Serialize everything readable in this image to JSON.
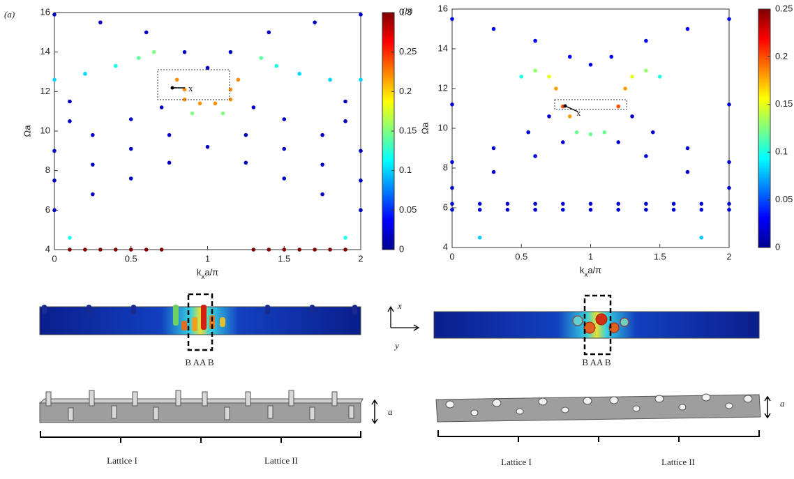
{
  "chart_data": [
    {
      "type": "scatter",
      "panel_label": "(a)",
      "ylabel": "Ωa",
      "xlabel": [
        "k",
        "x",
        "a/π"
      ],
      "annotation": "x",
      "xlim": [
        0,
        2
      ],
      "xticks": [
        0,
        0.5,
        1,
        1.5,
        2
      ],
      "ylim": [
        4,
        16
      ],
      "yticks": [
        4,
        6,
        8,
        10,
        12,
        14,
        16
      ],
      "colormap": "jet",
      "clim": [
        0,
        0.3
      ],
      "cticks": [
        0,
        0.05,
        0.1,
        0.15,
        0.2,
        0.25,
        0.3
      ],
      "x": [
        0,
        0.2,
        0.4,
        0.55,
        0.65,
        1.35,
        1.45,
        1.6,
        1.8,
        2,
        0.8,
        0.85,
        1.15,
        1.2,
        0.85,
        0.95,
        1.05,
        1.15,
        0.1,
        0.2,
        0.3,
        0.4,
        0.5,
        0.6,
        0.7,
        1.3,
        1.4,
        1.5,
        1.6,
        1.7,
        1.8,
        1.9,
        0,
        0.25,
        0.5,
        0.7,
        1.3,
        1.5,
        1.75,
        2,
        0,
        0.25,
        0.5,
        0.75,
        1.25,
        1.5,
        1.75,
        2,
        0,
        0.25,
        0.5,
        0.75,
        1,
        1.25,
        1.5,
        1.75,
        2,
        0,
        0.3,
        0.6,
        0.85,
        1,
        1.15,
        1.4,
        1.7,
        2,
        0.1,
        0.1,
        1.9,
        1.9,
        0.1,
        1.9,
        0.9,
        1.1
      ],
      "values": [
        12.6,
        12.9,
        13.3,
        13.7,
        14,
        13.7,
        13.3,
        12.9,
        12.6,
        12.6,
        12.6,
        12.1,
        12.1,
        12.6,
        11.6,
        11.4,
        11.4,
        11.6,
        4,
        4,
        4,
        4,
        4,
        4,
        4,
        4,
        4,
        4,
        4,
        4,
        4,
        4,
        9,
        9.8,
        10.6,
        11.2,
        11.2,
        10.6,
        9.8,
        9,
        7.5,
        8.3,
        9.1,
        9.8,
        9.8,
        9.1,
        8.3,
        7.5,
        6,
        6.8,
        7.6,
        8.4,
        9.2,
        8.4,
        7.6,
        6.8,
        6,
        15.9,
        15.5,
        15,
        14,
        13.2,
        14,
        15,
        15.5,
        15.9,
        11.5,
        10.5,
        11.5,
        10.5,
        4.6,
        4.6,
        10.9,
        10.9
      ],
      "color_values": [
        0.1,
        0.1,
        0.12,
        0.14,
        0.15,
        0.14,
        0.12,
        0.1,
        0.1,
        0.1,
        0.22,
        0.22,
        0.22,
        0.22,
        0.22,
        0.22,
        0.22,
        0.22,
        0.3,
        0.3,
        0.3,
        0.3,
        0.3,
        0.3,
        0.3,
        0.3,
        0.3,
        0.3,
        0.3,
        0.3,
        0.3,
        0.3,
        0.02,
        0.02,
        0.02,
        0.02,
        0.02,
        0.02,
        0.02,
        0.02,
        0.02,
        0.02,
        0.02,
        0.02,
        0.02,
        0.02,
        0.02,
        0.02,
        0.02,
        0.02,
        0.02,
        0.02,
        0.02,
        0.02,
        0.02,
        0.02,
        0.02,
        0.02,
        0.02,
        0.02,
        0.02,
        0.02,
        0.02,
        0.02,
        0.02,
        0.02,
        0.02,
        0.02,
        0.02,
        0.02,
        0.12,
        0.12,
        0.15,
        0.15
      ]
    },
    {
      "type": "scatter",
      "panel_label": "(b)",
      "ylabel": "Ωa",
      "xlabel": [
        "k",
        "x",
        "a/π"
      ],
      "annotation": "x",
      "xlim": [
        0,
        2
      ],
      "xticks": [
        0,
        0.5,
        1,
        1.5,
        2
      ],
      "ylim": [
        4,
        16
      ],
      "yticks": [
        4,
        6,
        8,
        10,
        12,
        14,
        16
      ],
      "colormap": "jet",
      "clim": [
        0,
        0.25
      ],
      "cticks": [
        0,
        0.05,
        0.1,
        0.15,
        0.2,
        0.25
      ],
      "x": [
        0.5,
        0.6,
        0.7,
        0.75,
        1.25,
        1.3,
        1.4,
        1.5,
        0.8,
        1.2,
        0.85,
        0.9,
        1,
        1.1,
        0,
        0.2,
        0.4,
        0.6,
        0.8,
        1,
        1.2,
        1.4,
        1.6,
        1.8,
        2,
        0,
        0.2,
        0.4,
        0.6,
        0.8,
        1,
        1.2,
        1.4,
        1.6,
        1.8,
        2,
        0,
        0.3,
        0.55,
        0.7,
        1.3,
        1.45,
        1.7,
        2,
        0,
        0.3,
        0.6,
        0.8,
        1.2,
        1.4,
        1.7,
        2,
        0,
        0.3,
        0.6,
        0.85,
        1,
        1.15,
        1.4,
        1.7,
        2,
        0.2,
        1.8,
        0,
        2
      ],
      "values": [
        12.6,
        12.9,
        12.6,
        12,
        12,
        12.6,
        12.9,
        12.6,
        11.1,
        11.1,
        10.6,
        9.8,
        9.7,
        9.8,
        6.2,
        6.2,
        6.2,
        6.2,
        6.2,
        6.2,
        6.2,
        6.2,
        6.2,
        6.2,
        6.2,
        5.9,
        5.9,
        5.9,
        5.9,
        5.9,
        5.9,
        5.9,
        5.9,
        5.9,
        5.9,
        5.9,
        8.3,
        9,
        9.8,
        10.6,
        10.6,
        9.8,
        9,
        8.3,
        7,
        7.8,
        8.6,
        9.3,
        9.3,
        8.6,
        7.8,
        7,
        15.5,
        15,
        14.4,
        13.6,
        13.2,
        13.6,
        14.4,
        15,
        15.5,
        4.5,
        4.5,
        11.2,
        11.2
      ],
      "color_values": [
        0.1,
        0.13,
        0.15,
        0.18,
        0.18,
        0.15,
        0.13,
        0.1,
        0.2,
        0.2,
        0.18,
        0.12,
        0.12,
        0.12,
        0.02,
        0.02,
        0.02,
        0.02,
        0.02,
        0.02,
        0.02,
        0.02,
        0.02,
        0.02,
        0.02,
        0.02,
        0.02,
        0.02,
        0.02,
        0.02,
        0.02,
        0.02,
        0.02,
        0.02,
        0.02,
        0.02,
        0.02,
        0.02,
        0.02,
        0.02,
        0.02,
        0.02,
        0.02,
        0.02,
        0.02,
        0.02,
        0.02,
        0.02,
        0.02,
        0.02,
        0.02,
        0.02,
        0.03,
        0.03,
        0.03,
        0.03,
        0.03,
        0.03,
        0.03,
        0.03,
        0.03,
        0.08,
        0.08,
        0.02,
        0.02
      ]
    }
  ],
  "illustration_a": {
    "sites": "B AA B",
    "thickness": "a",
    "lattice_1": "Lattice I",
    "lattice_2": "Lattice II"
  },
  "illustration_b": {
    "sites": "B AA B",
    "axis_x": "x",
    "axis_y": "y",
    "thickness": "a",
    "lattice_1": "Lattice I",
    "lattice_2": "Lattice II"
  }
}
